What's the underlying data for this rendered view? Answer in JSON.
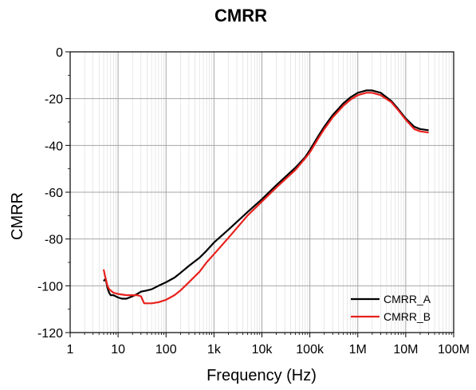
{
  "chart_data": {
    "type": "line",
    "title": "CMRR",
    "xlabel": "Frequency (Hz)",
    "ylabel": "CMRR",
    "xscale": "log",
    "xlim": [
      1,
      100000000
    ],
    "ylim": [
      -120,
      0
    ],
    "grid": true,
    "legend_position": "bottom-right",
    "x_tick_labels": [
      "1",
      "10",
      "100",
      "1k",
      "10k",
      "100k",
      "1M",
      "10M",
      "100M"
    ],
    "y_tick_labels": [
      "0",
      "-20",
      "-40",
      "-60",
      "-80",
      "-100",
      "-120"
    ],
    "series": [
      {
        "name": "CMRR_A",
        "color": "#000000",
        "x": [
          5,
          5.5,
          6,
          6.5,
          7,
          8,
          10,
          12,
          15,
          20,
          25,
          30,
          40,
          50,
          70,
          100,
          150,
          200,
          300,
          500,
          700,
          1000,
          2000,
          5000,
          10000,
          20000,
          50000,
          80000,
          100000,
          150000,
          200000,
          300000,
          500000,
          700000,
          1000000,
          1500000,
          2000000,
          3000000,
          5000000,
          7000000,
          10000000,
          15000000,
          20000000,
          30000000
        ],
        "y": [
          -98,
          -97,
          -101,
          -103,
          -104,
          -104,
          -105,
          -105.5,
          -105.5,
          -104.5,
          -103.5,
          -102.5,
          -102,
          -101.5,
          -100,
          -98.5,
          -96.5,
          -94.5,
          -91.5,
          -88,
          -85,
          -81.5,
          -76,
          -68.5,
          -63,
          -57,
          -49.5,
          -45,
          -42,
          -36,
          -32,
          -27,
          -22,
          -19.5,
          -17.5,
          -16.5,
          -16.5,
          -17.5,
          -21,
          -24.5,
          -28.5,
          -32,
          -33,
          -33.5
        ]
      },
      {
        "name": "CMRR_B",
        "color": "#e8211d",
        "x": [
          5,
          5.5,
          6,
          6.5,
          7,
          8,
          10,
          15,
          20,
          25,
          30,
          35,
          40,
          50,
          70,
          100,
          150,
          200,
          300,
          500,
          700,
          1000,
          2000,
          5000,
          10000,
          20000,
          50000,
          80000,
          100000,
          150000,
          200000,
          300000,
          500000,
          700000,
          1000000,
          1500000,
          2000000,
          3000000,
          5000000,
          7000000,
          10000000,
          15000000,
          20000000,
          30000000
        ],
        "y": [
          -93,
          -97,
          -100,
          -101.5,
          -102,
          -103,
          -103.5,
          -104,
          -104,
          -104,
          -104.5,
          -107.5,
          -107.5,
          -107.5,
          -107,
          -106,
          -104,
          -102,
          -98.5,
          -94,
          -90,
          -86.5,
          -79.5,
          -70,
          -64,
          -58,
          -50.5,
          -45.5,
          -43,
          -37,
          -33,
          -28,
          -23,
          -20.5,
          -18.5,
          -17.5,
          -17.5,
          -18.5,
          -21.5,
          -25,
          -29,
          -33,
          -34,
          -34.5
        ]
      }
    ]
  }
}
